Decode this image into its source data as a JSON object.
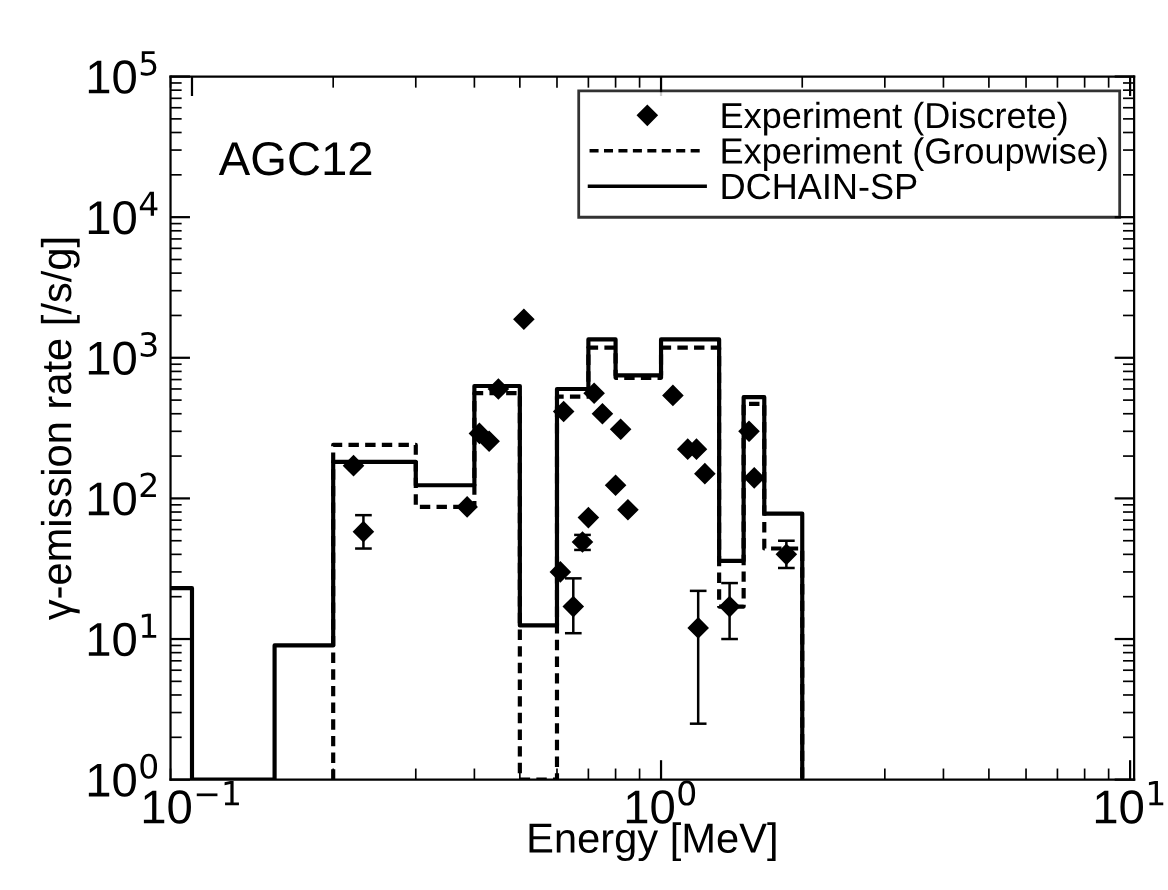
{
  "chart_data": {
    "type": "scatter",
    "xlabel": "Energy [MeV]",
    "ylabel": "γ-emission rate [/s/g]",
    "annotations": [
      "AGC12"
    ],
    "log": "xy",
    "legend": "top right",
    "xlim": [
      0.09,
      10.2
    ],
    "ylim": [
      1,
      100000
    ],
    "xticks": [
      {
        "value": 0.1,
        "label": "10$^{−1}$"
      },
      {
        "value": 1,
        "label": "10$^{0}$"
      },
      {
        "value": 10,
        "label": "10$^{1}$"
      }
    ],
    "yticks": [
      {
        "value": 1,
        "label": "10$^{0}$"
      },
      {
        "value": 10,
        "label": "10$^{1}$"
      },
      {
        "value": 100,
        "label": "10$^{2}$"
      },
      {
        "value": 1000,
        "label": "10$^{3}$"
      },
      {
        "value": 10000,
        "label": "10$^{4}$"
      },
      {
        "value": 100000,
        "label": "10$^{5}$"
      }
    ],
    "series": [
      {
        "name": "Experiment (Discrete)",
        "type": "scatter",
        "color": "#000000",
        "marker": "diamond",
        "x": [
          0.221,
          0.232,
          0.386,
          0.41,
          0.43,
          0.45,
          0.51,
          0.61,
          0.62,
          0.65,
          0.68,
          0.7,
          0.72,
          0.75,
          0.8,
          0.82,
          0.85,
          1.06,
          1.14,
          1.19,
          1.24,
          1.2,
          1.4,
          1.54,
          1.58,
          1.85
        ],
        "values": [
          171,
          58,
          87,
          290,
          255,
          600,
          1880,
          30,
          415,
          17,
          49,
          73,
          560,
          400,
          124,
          310,
          83,
          540,
          224,
          224,
          150,
          12,
          17,
          300,
          140,
          40
        ],
        "errors": [
          null,
          [
            44,
            76
          ],
          null,
          null,
          null,
          null,
          null,
          null,
          null,
          [
            11,
            27
          ],
          6,
          null,
          null,
          null,
          null,
          null,
          null,
          null,
          null,
          null,
          null,
          [
            2.5,
            22
          ],
          [
            10,
            25
          ],
          null,
          null,
          [
            32,
            50
          ]
        ]
      },
      {
        "name": "Experiment (Groupwise)",
        "type": "step",
        "color": "#000000",
        "line_style": "dashed",
        "x": [
          0.2,
          0.2,
          0.3,
          0.4,
          0.5,
          0.6,
          0.7,
          0.8,
          1.0,
          1.33,
          1.5,
          1.66,
          2.0
        ],
        "values": [
          1,
          240,
          87,
          560,
          1,
          530,
          1180,
          720,
          1180,
          17,
          470,
          44,
          1
        ]
      },
      {
        "name": "DCHAIN-SP",
        "type": "step",
        "color": "#000000",
        "line_style": "solid",
        "x": [
          0.09,
          0.1,
          0.15,
          0.2,
          0.3,
          0.4,
          0.5,
          0.6,
          0.7,
          0.8,
          1.0,
          1.33,
          1.5,
          1.66,
          2.0
        ],
        "values": [
          23,
          1,
          9,
          182,
          124,
          630,
          12.5,
          600,
          1350,
          750,
          1350,
          36,
          525,
          78,
          1
        ]
      }
    ]
  }
}
